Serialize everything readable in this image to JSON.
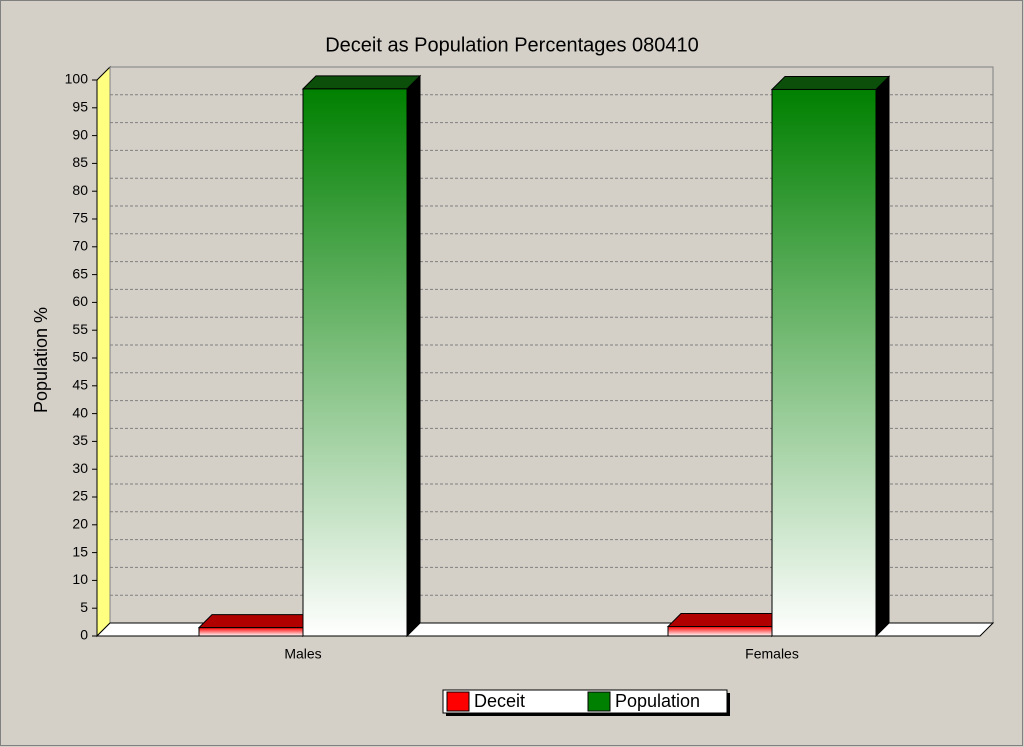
{
  "chart_data": {
    "type": "bar",
    "title": "Deceit as Population Percentages 080410",
    "y_label": "Population %",
    "categories": [
      "Males",
      "Females"
    ],
    "series": [
      {
        "name": "Deceit",
        "color": "#ff0000",
        "values": [
          1.5,
          1.7
        ]
      },
      {
        "name": "Population",
        "color": "#008000",
        "values": [
          98.4,
          98.3
        ]
      }
    ],
    "ylim": [
      0,
      100
    ],
    "yticks": [
      0,
      5,
      10,
      15,
      20,
      25,
      30,
      35,
      40,
      45,
      50,
      55,
      60,
      65,
      70,
      75,
      80,
      85,
      90,
      95,
      100
    ],
    "grid": true,
    "legend": "bottom"
  }
}
